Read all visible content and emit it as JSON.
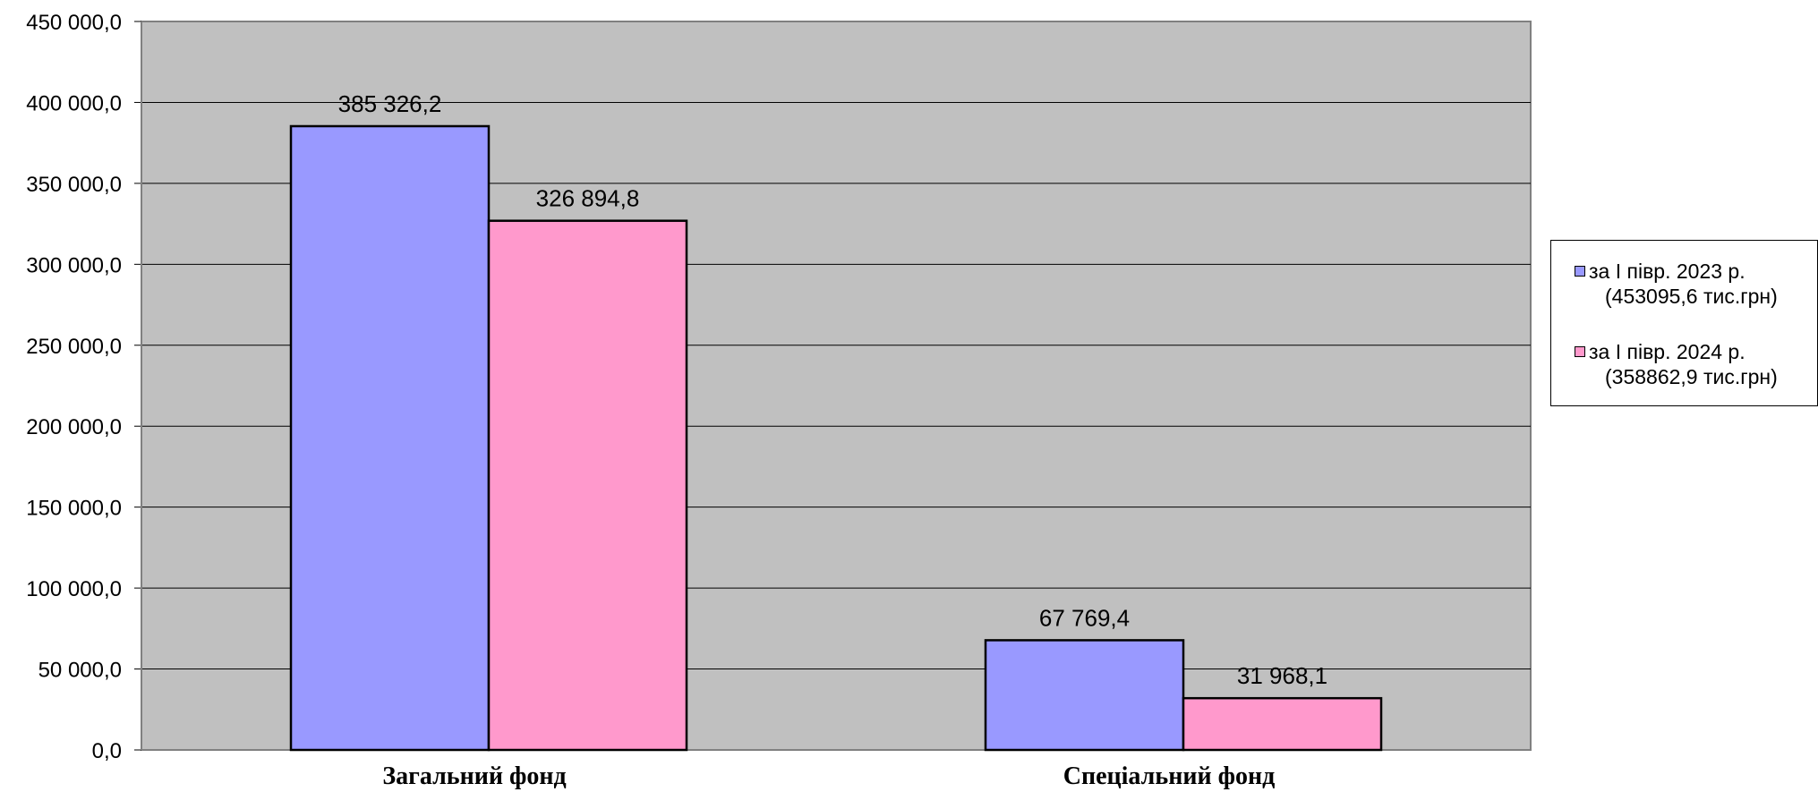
{
  "chart_data": {
    "type": "bar",
    "title": "",
    "xlabel": "",
    "ylabel": "",
    "categories": [
      "Загальний фонд",
      "Спеціальний фонд"
    ],
    "series": [
      {
        "name": "за І півр. 2023 р. (453095,6 тис.грн)",
        "name_line1": "за І півр. 2023 р.",
        "name_line2": "(453095,6 тис.грн)",
        "values": [
          385326.2,
          67769.4
        ],
        "value_labels": [
          "385 326,2",
          "67 769,4"
        ],
        "color": "#9999ff"
      },
      {
        "name": "за І півр. 2024 р. (358862,9 тис.грн)",
        "name_line1": "за І півр. 2024 р.",
        "name_line2": "(358862,9 тис.грн)",
        "values": [
          326894.8,
          31968.1
        ],
        "value_labels": [
          "326 894,8",
          "31 968,1"
        ],
        "color": "#ff99cc"
      }
    ],
    "ylim": [
      0,
      450000
    ],
    "yticks": [
      0,
      50000,
      100000,
      150000,
      200000,
      250000,
      300000,
      350000,
      400000,
      450000
    ],
    "ytick_labels": [
      "0,0",
      "50 000,0",
      "100 000,0",
      "150 000,0",
      "200 000,0",
      "250 000,0",
      "300 000,0",
      "350 000,0",
      "400 000,0",
      "450 000,0"
    ],
    "grid": true,
    "plot_background": "#c0c0c0",
    "legend_position": "right"
  }
}
